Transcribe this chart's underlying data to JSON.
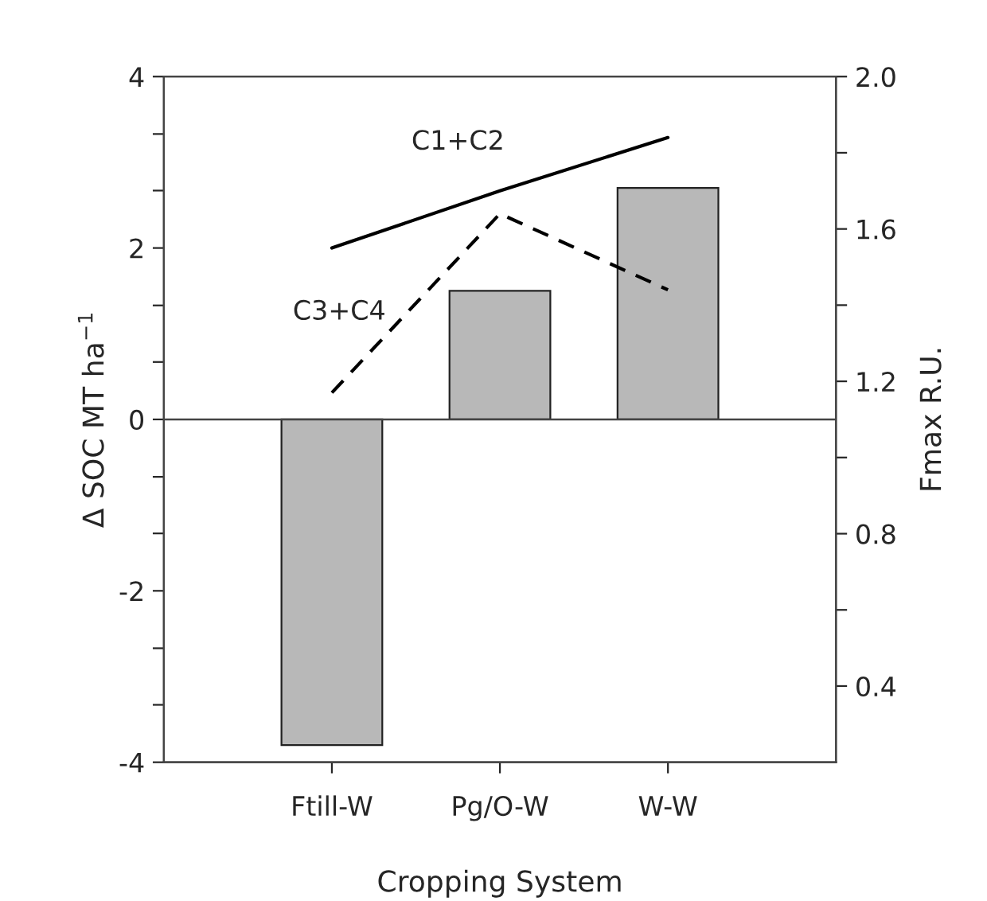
{
  "chart_data": {
    "type": "bar",
    "xlabel": "Cropping System",
    "ylabel": "Δ SOC MT ha$^{−1}$",
    "y2label": "Fmax R.U.",
    "categories": [
      "Ftill-W",
      "Pg/O-W",
      "W-W"
    ],
    "series": [
      {
        "color": "#b8b8b8",
        "values": [
          -3.8,
          1.5,
          2.7
        ]
      },
      {
        "type": "line",
        "name": "C1+C2",
        "axis": "y2",
        "color": "#000000",
        "line_style": "solid",
        "values": [
          1.55,
          1.7,
          1.84
        ]
      },
      {
        "type": "line",
        "name": "C3+C4",
        "axis": "y2",
        "color": "#000000",
        "line_style": "dashed",
        "values": [
          1.17,
          1.64,
          1.44
        ]
      }
    ],
    "ylim": [
      -4,
      4
    ],
    "yticks": [
      -4,
      {
        "value": -3.33,
        "label": null
      },
      {
        "value": -2.67,
        "label": null
      },
      -2,
      {
        "value": -1.33,
        "label": null
      },
      {
        "value": -0.67,
        "label": null
      },
      0,
      {
        "value": 0.67,
        "label": null
      },
      {
        "value": 1.33,
        "label": null
      },
      2,
      {
        "value": 2.67,
        "label": null
      },
      {
        "value": 3.33,
        "label": null
      },
      4
    ],
    "y2lim": [
      0.2,
      2.0
    ],
    "y2ticks": [
      {
        "value": 0.4,
        "label": "0.4"
      },
      {
        "value": 0.6,
        "label": null
      },
      {
        "value": 0.8,
        "label": "0.8"
      },
      {
        "value": 1.0,
        "label": null
      },
      {
        "value": 1.2,
        "label": "1.2"
      },
      {
        "value": 1.4,
        "label": null
      },
      {
        "value": 1.6,
        "label": "1.6"
      },
      {
        "value": 1.8,
        "label": null
      },
      {
        "value": 2.0,
        "label": "2.0"
      }
    ],
    "ref_lines": [
      {
        "axis": "y",
        "value": 0,
        "color": "#444444"
      }
    ],
    "legend": false
  }
}
